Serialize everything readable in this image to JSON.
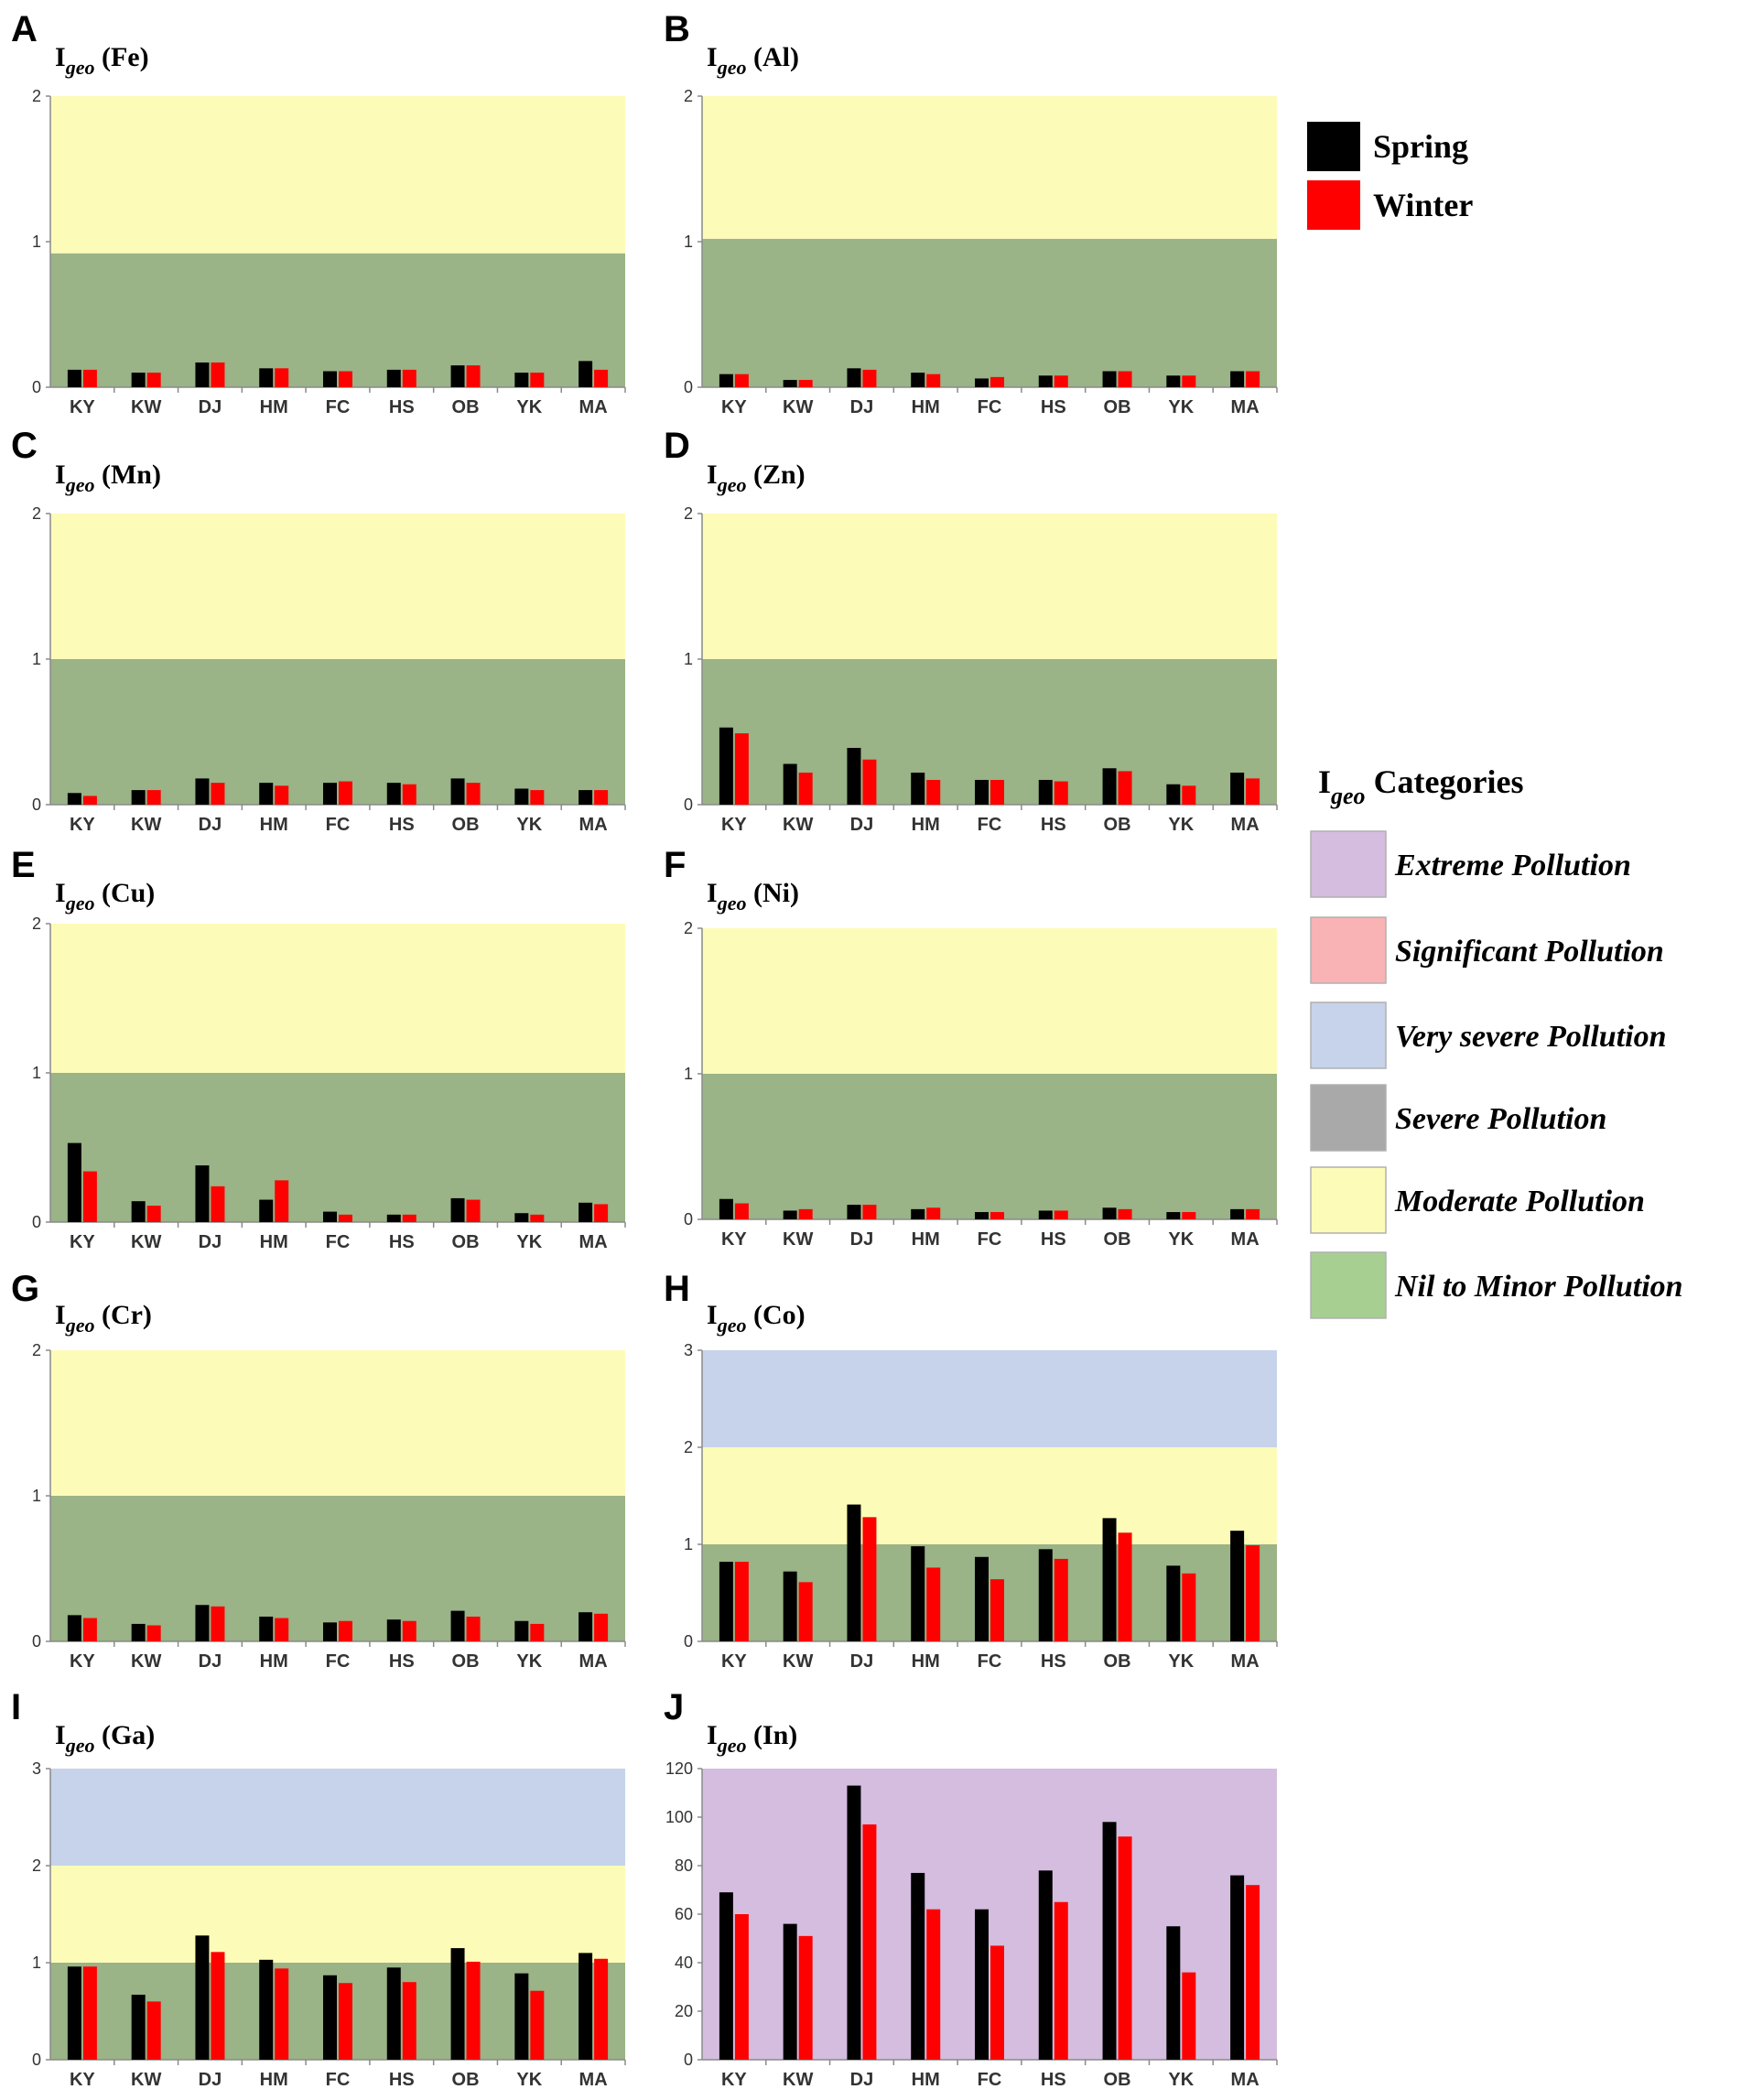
{
  "categories_x": [
    "KY",
    "KW",
    "DJ",
    "HM",
    "FC",
    "HS",
    "OB",
    "YK",
    "MA"
  ],
  "series_names": [
    "Spring",
    "Winter"
  ],
  "colors": {
    "spring": "#000000",
    "winter": "#ff0000",
    "nil": "#9ab387",
    "moderate": "#fdfbb8",
    "severe": "#a9a9a9",
    "very_severe": "#c6d3ea",
    "significant": "#f9b3b5",
    "extreme": "#d4bddf",
    "nil_legend": "#a7cf92"
  },
  "chart_data": [
    {
      "panel": "A",
      "type": "bar",
      "title_main": "I",
      "title_sub": "geo",
      "title_rest": " (Fe)",
      "ylim": [
        0,
        2
      ],
      "yticks": [
        0,
        1,
        2
      ],
      "bands": [
        {
          "from": 0,
          "to": 0.92,
          "color": "nil"
        },
        {
          "from": 0.92,
          "to": 2,
          "color": "moderate"
        }
      ],
      "series": [
        {
          "name": "Spring",
          "values": [
            0.12,
            0.1,
            0.17,
            0.13,
            0.11,
            0.12,
            0.15,
            0.1,
            0.18
          ]
        },
        {
          "name": "Winter",
          "values": [
            0.12,
            0.1,
            0.17,
            0.13,
            0.11,
            0.12,
            0.15,
            0.1,
            0.12
          ]
        }
      ]
    },
    {
      "panel": "B",
      "type": "bar",
      "title_main": "I",
      "title_sub": "geo",
      "title_rest": " (Al)",
      "ylim": [
        0,
        2
      ],
      "yticks": [
        0,
        1,
        2
      ],
      "bands": [
        {
          "from": 0,
          "to": 1.02,
          "color": "nil"
        },
        {
          "from": 1.02,
          "to": 2,
          "color": "moderate"
        }
      ],
      "series": [
        {
          "name": "Spring",
          "values": [
            0.09,
            0.05,
            0.13,
            0.1,
            0.06,
            0.08,
            0.11,
            0.08,
            0.11
          ]
        },
        {
          "name": "Winter",
          "values": [
            0.09,
            0.05,
            0.12,
            0.09,
            0.07,
            0.08,
            0.11,
            0.08,
            0.11
          ]
        }
      ]
    },
    {
      "panel": "C",
      "type": "bar",
      "title_main": "I",
      "title_sub": "geo",
      "title_rest": " (Mn)",
      "ylim": [
        0,
        2
      ],
      "yticks": [
        0,
        1,
        2
      ],
      "bands": [
        {
          "from": 0,
          "to": 1.0,
          "color": "nil"
        },
        {
          "from": 1.0,
          "to": 2,
          "color": "moderate"
        }
      ],
      "series": [
        {
          "name": "Spring",
          "values": [
            0.08,
            0.1,
            0.18,
            0.15,
            0.15,
            0.15,
            0.18,
            0.11,
            0.1
          ]
        },
        {
          "name": "Winter",
          "values": [
            0.06,
            0.1,
            0.15,
            0.13,
            0.16,
            0.14,
            0.15,
            0.1,
            0.1
          ]
        }
      ]
    },
    {
      "panel": "D",
      "type": "bar",
      "title_main": "I",
      "title_sub": "geo",
      "title_rest": " (Zn)",
      "ylim": [
        0,
        2
      ],
      "yticks": [
        0,
        1,
        2
      ],
      "bands": [
        {
          "from": 0,
          "to": 1.0,
          "color": "nil"
        },
        {
          "from": 1.0,
          "to": 2,
          "color": "moderate"
        }
      ],
      "series": [
        {
          "name": "Spring",
          "values": [
            0.53,
            0.28,
            0.39,
            0.22,
            0.17,
            0.17,
            0.25,
            0.14,
            0.22
          ]
        },
        {
          "name": "Winter",
          "values": [
            0.49,
            0.22,
            0.31,
            0.17,
            0.17,
            0.16,
            0.23,
            0.13,
            0.18
          ]
        }
      ]
    },
    {
      "panel": "E",
      "type": "bar",
      "title_main": "I",
      "title_sub": "geo",
      "title_rest": " (Cu)",
      "ylim": [
        0,
        2
      ],
      "yticks": [
        0,
        1,
        2
      ],
      "bands": [
        {
          "from": 0,
          "to": 1.0,
          "color": "nil"
        },
        {
          "from": 1.0,
          "to": 2,
          "color": "moderate"
        }
      ],
      "series": [
        {
          "name": "Spring",
          "values": [
            0.53,
            0.14,
            0.38,
            0.15,
            0.07,
            0.05,
            0.16,
            0.06,
            0.13
          ]
        },
        {
          "name": "Winter",
          "values": [
            0.34,
            0.11,
            0.24,
            0.28,
            0.05,
            0.05,
            0.15,
            0.05,
            0.12
          ]
        }
      ]
    },
    {
      "panel": "F",
      "type": "bar",
      "title_main": "I",
      "title_sub": "geo",
      "title_rest": " (Ni)",
      "ylim": [
        0,
        2
      ],
      "yticks": [
        0,
        1,
        2
      ],
      "bands": [
        {
          "from": 0,
          "to": 1.0,
          "color": "nil"
        },
        {
          "from": 1.0,
          "to": 2,
          "color": "moderate"
        }
      ],
      "series": [
        {
          "name": "Spring",
          "values": [
            0.14,
            0.06,
            0.1,
            0.07,
            0.05,
            0.06,
            0.08,
            0.05,
            0.07
          ]
        },
        {
          "name": "Winter",
          "values": [
            0.11,
            0.07,
            0.1,
            0.08,
            0.05,
            0.06,
            0.07,
            0.05,
            0.07
          ]
        }
      ]
    },
    {
      "panel": "G",
      "type": "bar",
      "title_main": "I",
      "title_sub": "geo",
      "title_rest": " (Cr)",
      "ylim": [
        0,
        2
      ],
      "yticks": [
        0,
        1,
        2
      ],
      "bands": [
        {
          "from": 0,
          "to": 1.0,
          "color": "nil"
        },
        {
          "from": 1.0,
          "to": 2,
          "color": "moderate"
        }
      ],
      "series": [
        {
          "name": "Spring",
          "values": [
            0.18,
            0.12,
            0.25,
            0.17,
            0.13,
            0.15,
            0.21,
            0.14,
            0.2
          ]
        },
        {
          "name": "Winter",
          "values": [
            0.16,
            0.11,
            0.24,
            0.16,
            0.14,
            0.14,
            0.17,
            0.12,
            0.19
          ]
        }
      ]
    },
    {
      "panel": "H",
      "type": "bar",
      "title_main": "I",
      "title_sub": "geo",
      "title_rest": " (Co)",
      "ylim": [
        0,
        3
      ],
      "yticks": [
        0,
        1,
        2,
        3
      ],
      "bands": [
        {
          "from": 0,
          "to": 1.0,
          "color": "nil"
        },
        {
          "from": 1.0,
          "to": 2,
          "color": "moderate"
        },
        {
          "from": 2,
          "to": 3,
          "color": "very_severe"
        }
      ],
      "series": [
        {
          "name": "Spring",
          "values": [
            0.82,
            0.72,
            1.41,
            0.98,
            0.87,
            0.95,
            1.27,
            0.78,
            1.14
          ]
        },
        {
          "name": "Winter",
          "values": [
            0.82,
            0.61,
            1.28,
            0.76,
            0.64,
            0.85,
            1.12,
            0.7,
            0.99
          ]
        }
      ]
    },
    {
      "panel": "I",
      "type": "bar",
      "title_main": "I",
      "title_sub": "geo",
      "title_rest": " (Ga)",
      "ylim": [
        0,
        3
      ],
      "yticks": [
        0,
        1,
        2,
        3
      ],
      "bands": [
        {
          "from": 0,
          "to": 1.0,
          "color": "nil"
        },
        {
          "from": 1.0,
          "to": 2,
          "color": "moderate"
        },
        {
          "from": 2,
          "to": 3,
          "color": "very_severe"
        }
      ],
      "series": [
        {
          "name": "Spring",
          "values": [
            0.96,
            0.67,
            1.28,
            1.03,
            0.87,
            0.95,
            1.15,
            0.89,
            1.1
          ]
        },
        {
          "name": "Winter",
          "values": [
            0.96,
            0.6,
            1.11,
            0.94,
            0.79,
            0.8,
            1.01,
            0.71,
            1.04
          ]
        }
      ]
    },
    {
      "panel": "J",
      "type": "bar",
      "title_main": "I",
      "title_sub": "geo",
      "title_rest": " (In)",
      "ylim": [
        0,
        120
      ],
      "yticks": [
        0,
        20,
        40,
        60,
        80,
        100,
        120
      ],
      "bands": [
        {
          "from": 0,
          "to": 120,
          "color": "extreme"
        }
      ],
      "series": [
        {
          "name": "Spring",
          "values": [
            69,
            56,
            113,
            77,
            62,
            78,
            98,
            55,
            76
          ]
        },
        {
          "name": "Winter",
          "values": [
            60,
            51,
            97,
            62,
            47,
            65,
            92,
            36,
            72
          ]
        }
      ]
    }
  ],
  "legend": {
    "spring_label": "Spring",
    "winter_label": "Winter"
  },
  "categories_legend": {
    "title_main": "I",
    "title_sub": "geo",
    "title_rest": " Categories",
    "items": [
      {
        "label": "Extreme Pollution",
        "color": "extreme"
      },
      {
        "label": "Significant Pollution",
        "color": "significant"
      },
      {
        "label": "Very severe Pollution",
        "color": "very_severe"
      },
      {
        "label": "Severe Pollution",
        "color": "severe"
      },
      {
        "label": "Moderate Pollution",
        "color": "moderate"
      },
      {
        "label": "Nil to Minor Pollution",
        "color": "nil_legend"
      }
    ]
  }
}
